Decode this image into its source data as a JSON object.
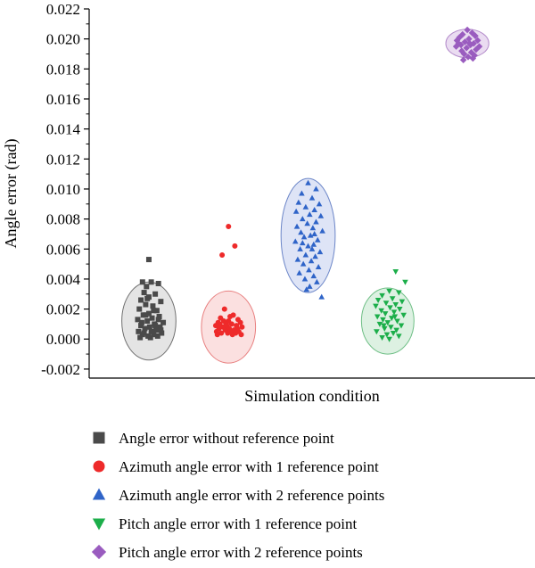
{
  "chart_data": {
    "type": "scatter",
    "title": "",
    "xlabel": "Simulation condition",
    "ylabel": "Angle error (rad)",
    "ylim": [
      -0.0026,
      0.022
    ],
    "yticks": [
      "-0.002",
      "0.000",
      "0.002",
      "0.004",
      "0.006",
      "0.008",
      "0.010",
      "0.012",
      "0.014",
      "0.016",
      "0.018",
      "0.020",
      "0.022"
    ],
    "x_ticks_visible": false,
    "grid": false,
    "legend_position": "bottom",
    "series": [
      {
        "name": "Angle error without reference point",
        "marker": "square",
        "color": "#4a4a4a",
        "ellipse_fill": "#e4e4e4",
        "ellipse_stroke": "#707070",
        "ellipse_center": [
          1,
          0.0012
        ],
        "ellipse_radius_y": 0.0026,
        "points": [
          [
            1,
            0.0053
          ],
          [
            0.92,
            0.0038
          ],
          [
            1.03,
            0.0038
          ],
          [
            0.97,
            0.0035
          ],
          [
            1.12,
            0.0037
          ],
          [
            0.94,
            0.0031
          ],
          [
            1.08,
            0.003
          ],
          [
            1.0,
            0.0028
          ],
          [
            0.9,
            0.0026
          ],
          [
            1.15,
            0.0025
          ],
          [
            0.96,
            0.0023
          ],
          [
            1.05,
            0.0022
          ],
          [
            0.88,
            0.002
          ],
          [
            1.1,
            0.0019
          ],
          [
            1.0,
            0.0017
          ],
          [
            0.93,
            0.0016
          ],
          [
            1.13,
            0.0015
          ],
          [
            1.04,
            0.0014
          ],
          [
            0.86,
            0.0013
          ],
          [
            0.98,
            0.0012
          ],
          [
            1.18,
            0.0011
          ],
          [
            1.07,
            0.001
          ],
          [
            0.9,
            0.0009
          ],
          [
            1.01,
            0.0008
          ],
          [
            1.14,
            0.0008
          ],
          [
            0.95,
            0.0007
          ],
          [
            1.09,
            0.0006
          ],
          [
            0.87,
            0.0005
          ],
          [
            1.03,
            0.0005
          ],
          [
            1.16,
            0.0004
          ],
          [
            0.92,
            0.0003
          ],
          [
            1.06,
            0.0003
          ],
          [
            0.99,
            0.0002
          ],
          [
            1.11,
            0.0002
          ],
          [
            0.89,
            0.0001
          ],
          [
            1.02,
            0.0001
          ],
          [
            0.96,
            0.0016
          ],
          [
            1.12,
            0.0013
          ],
          [
            0.91,
            0.0011
          ],
          [
            1.06,
            0.0019
          ],
          [
            0.98,
            0.0027
          ],
          [
            1.15,
            0.0006
          ],
          [
            0.94,
            0.0004
          ],
          [
            1.08,
            0.0009
          ]
        ]
      },
      {
        "name": "Azimuth angle error with 1 reference point",
        "marker": "circle",
        "color": "#ee2a2a",
        "ellipse_fill": "#fbe0e0",
        "ellipse_stroke": "#e88080",
        "ellipse_center": [
          2,
          0.0008
        ],
        "ellipse_radius_y": 0.0024,
        "points": [
          [
            2.0,
            0.0075
          ],
          [
            2.08,
            0.0062
          ],
          [
            1.92,
            0.0056
          ],
          [
            1.95,
            0.002
          ],
          [
            2.06,
            0.0016
          ],
          [
            1.9,
            0.0014
          ],
          [
            2.12,
            0.0013
          ],
          [
            2.0,
            0.0012
          ],
          [
            1.87,
            0.0011
          ],
          [
            2.15,
            0.0011
          ],
          [
            1.97,
            0.001
          ],
          [
            2.04,
            0.001
          ],
          [
            1.84,
            0.0009
          ],
          [
            2.1,
            0.0009
          ],
          [
            1.93,
            0.0008
          ],
          [
            2.17,
            0.0008
          ],
          [
            2.01,
            0.0007
          ],
          [
            1.88,
            0.0007
          ],
          [
            2.07,
            0.0006
          ],
          [
            1.96,
            0.0006
          ],
          [
            2.13,
            0.0005
          ],
          [
            1.85,
            0.0005
          ],
          [
            2.03,
            0.0005
          ],
          [
            1.91,
            0.0004
          ],
          [
            2.09,
            0.0004
          ],
          [
            1.99,
            0.0004
          ],
          [
            2.16,
            0.0003
          ],
          [
            1.86,
            0.0003
          ],
          [
            2.05,
            0.0003
          ],
          [
            1.94,
            0.0012
          ],
          [
            2.11,
            0.0007
          ],
          [
            1.98,
            0.0009
          ],
          [
            2.02,
            0.0015
          ],
          [
            1.89,
            0.001
          ]
        ]
      },
      {
        "name": "Azimuth angle error with 2 reference points",
        "marker": "triangle-up",
        "color": "#2f64c8",
        "ellipse_fill": "#dee4f6",
        "ellipse_stroke": "#6c86c8",
        "ellipse_center": [
          3,
          0.0069
        ],
        "ellipse_radius_y": 0.0038,
        "points": [
          [
            3.0,
            0.0104
          ],
          [
            3.1,
            0.01
          ],
          [
            2.92,
            0.0097
          ],
          [
            3.05,
            0.0094
          ],
          [
            2.88,
            0.0091
          ],
          [
            3.14,
            0.009
          ],
          [
            2.97,
            0.0088
          ],
          [
            3.08,
            0.0086
          ],
          [
            2.85,
            0.0085
          ],
          [
            3.02,
            0.0083
          ],
          [
            3.16,
            0.0082
          ],
          [
            2.93,
            0.008
          ],
          [
            3.1,
            0.0078
          ],
          [
            2.99,
            0.0077
          ],
          [
            2.86,
            0.0075
          ],
          [
            3.06,
            0.0074
          ],
          [
            3.18,
            0.0072
          ],
          [
            2.91,
            0.0071
          ],
          [
            3.03,
            0.0069
          ],
          [
            2.95,
            0.0068
          ],
          [
            3.12,
            0.0066
          ],
          [
            2.84,
            0.0065
          ],
          [
            3.07,
            0.0063
          ],
          [
            3.0,
            0.0062
          ],
          [
            2.9,
            0.006
          ],
          [
            3.15,
            0.0058
          ],
          [
            2.97,
            0.0056
          ],
          [
            3.09,
            0.0055
          ],
          [
            2.87,
            0.0053
          ],
          [
            3.04,
            0.0052
          ],
          [
            2.94,
            0.005
          ],
          [
            3.13,
            0.0048
          ],
          [
            3.01,
            0.0046
          ],
          [
            2.89,
            0.0044
          ],
          [
            3.07,
            0.0042
          ],
          [
            2.96,
            0.004
          ],
          [
            3.11,
            0.0038
          ],
          [
            3.02,
            0.0035
          ],
          [
            2.98,
            0.0033
          ],
          [
            3.17,
            0.0028
          ],
          [
            3.05,
            0.006
          ],
          [
            2.93,
            0.0064
          ],
          [
            3.08,
            0.007
          ]
        ]
      },
      {
        "name": "Pitch angle error with 1 reference point",
        "marker": "triangle-down",
        "color": "#1cae4a",
        "ellipse_fill": "#ddf1e2",
        "ellipse_stroke": "#6fbf86",
        "ellipse_center": [
          4,
          0.0012
        ],
        "ellipse_radius_y": 0.0022,
        "points": [
          [
            4.1,
            0.0045
          ],
          [
            4.22,
            0.0038
          ],
          [
            4.02,
            0.0032
          ],
          [
            4.14,
            0.0031
          ],
          [
            3.93,
            0.0029
          ],
          [
            4.06,
            0.0027
          ],
          [
            3.88,
            0.0026
          ],
          [
            4.18,
            0.0025
          ],
          [
            3.98,
            0.0024
          ],
          [
            4.1,
            0.0023
          ],
          [
            3.85,
            0.0022
          ],
          [
            4.03,
            0.0021
          ],
          [
            4.15,
            0.002
          ],
          [
            3.92,
            0.0019
          ],
          [
            4.08,
            0.0018
          ],
          [
            3.97,
            0.0017
          ],
          [
            4.2,
            0.0016
          ],
          [
            3.87,
            0.0015
          ],
          [
            4.05,
            0.0014
          ],
          [
            3.94,
            0.0013
          ],
          [
            4.12,
            0.0012
          ],
          [
            4.0,
            0.0011
          ],
          [
            3.9,
            0.001
          ],
          [
            4.17,
            0.0009
          ],
          [
            4.04,
            0.0008
          ],
          [
            3.96,
            0.0007
          ],
          [
            4.11,
            0.0006
          ],
          [
            3.86,
            0.0005
          ],
          [
            4.07,
            0.0004
          ],
          [
            3.99,
            0.0003
          ],
          [
            4.14,
            0.0002
          ],
          [
            3.93,
            0.0001
          ],
          [
            4.02,
            0.0
          ],
          [
            4.09,
            0.0015
          ],
          [
            3.95,
            0.0009
          ]
        ]
      },
      {
        "name": "Pitch angle error with 2 reference points",
        "marker": "diamond",
        "color": "#9a5cbf",
        "ellipse_fill": "#eadcf1",
        "ellipse_stroke": "#b48ccb",
        "ellipse_center": [
          5,
          0.0197
        ],
        "ellipse_radius_y": 0.00095,
        "points": [
          [
            5.0,
            0.0206
          ],
          [
            5.06,
            0.0204
          ],
          [
            4.94,
            0.0203
          ],
          [
            5.1,
            0.0202
          ],
          [
            4.9,
            0.0201
          ],
          [
            5.02,
            0.02
          ],
          [
            5.13,
            0.0199
          ],
          [
            4.87,
            0.0199
          ],
          [
            4.97,
            0.0198
          ],
          [
            5.08,
            0.0197
          ],
          [
            4.92,
            0.0196
          ],
          [
            5.04,
            0.0196
          ],
          [
            5.15,
            0.0195
          ],
          [
            4.86,
            0.0195
          ],
          [
            4.99,
            0.0194
          ],
          [
            5.11,
            0.0193
          ],
          [
            4.93,
            0.0192
          ],
          [
            5.05,
            0.0191
          ],
          [
            4.96,
            0.019
          ],
          [
            5.09,
            0.0189
          ],
          [
            5.01,
            0.0188
          ],
          [
            5.07,
            0.0187
          ],
          [
            4.95,
            0.0186
          ],
          [
            5.03,
            0.0197
          ],
          [
            4.89,
            0.0197
          ]
        ]
      }
    ]
  }
}
